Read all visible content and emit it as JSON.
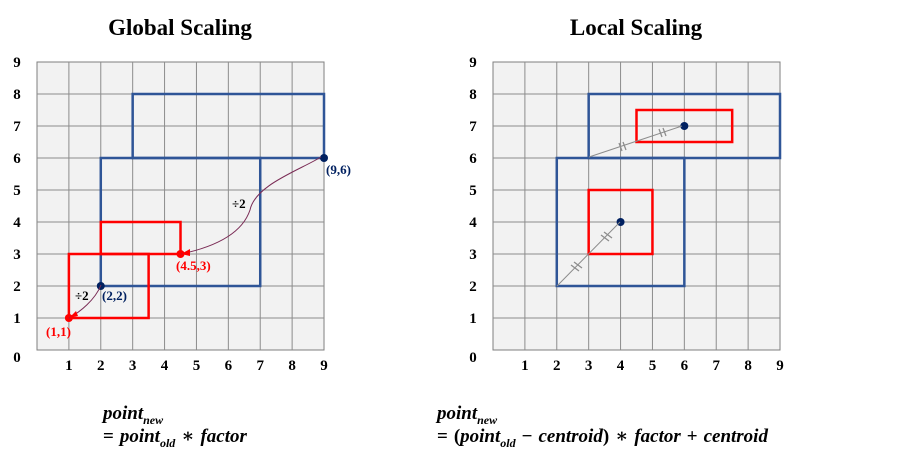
{
  "panels": [
    {
      "title": "Global Scaling",
      "x_ticks": [
        "1",
        "2",
        "3",
        "4",
        "5",
        "6",
        "7",
        "8",
        "9"
      ],
      "y_ticks": [
        "1",
        "2",
        "3",
        "4",
        "5",
        "6",
        "7",
        "8",
        "9"
      ],
      "origin_label": "0",
      "blue_rects": [
        {
          "x1": 3,
          "y1": 6,
          "x2": 9,
          "y2": 8
        },
        {
          "x1": 2,
          "y1": 2,
          "x2": 7,
          "y2": 6
        }
      ],
      "red_rects": [
        {
          "x1": 2,
          "y1": 3,
          "x2": 4.5,
          "y2": 4
        },
        {
          "x1": 1,
          "y1": 1,
          "x2": 3.5,
          "y2": 3
        }
      ],
      "points": [
        {
          "x": 9,
          "y": 6,
          "color": "#002060",
          "label": "(9,6)"
        },
        {
          "x": 2,
          "y": 2,
          "color": "#002060",
          "label": "(2,2)"
        },
        {
          "x": 4.5,
          "y": 3,
          "color": "#ff0000",
          "label": "(4.5,3)"
        },
        {
          "x": 1,
          "y": 1,
          "color": "#ff0000",
          "label": "(1,1)"
        }
      ],
      "annotations": [
        "÷2",
        "÷2"
      ],
      "formula": {
        "line1_main": "point",
        "line1_sub": "new",
        "line2_eq": "=",
        "line2_main": "point",
        "line2_sub": "old",
        "line2_op": "∗",
        "line2_factor": "factor"
      }
    },
    {
      "title": "Local Scaling",
      "x_ticks": [
        "1",
        "2",
        "3",
        "4",
        "5",
        "6",
        "7",
        "8",
        "9"
      ],
      "y_ticks": [
        "1",
        "2",
        "3",
        "4",
        "5",
        "6",
        "7",
        "8",
        "9"
      ],
      "origin_label": "0",
      "blue_rects": [
        {
          "x1": 3,
          "y1": 6,
          "x2": 9,
          "y2": 8
        },
        {
          "x1": 2,
          "y1": 2,
          "x2": 6,
          "y2": 6
        }
      ],
      "red_rects": [
        {
          "x1": 4.5,
          "y1": 6.5,
          "x2": 7.5,
          "y2": 7.5
        },
        {
          "x1": 3,
          "y1": 3,
          "x2": 5,
          "y2": 5
        }
      ],
      "points": [
        {
          "x": 6,
          "y": 7,
          "color": "#002060"
        },
        {
          "x": 4,
          "y": 4,
          "color": "#002060"
        }
      ],
      "formula": {
        "line1_main": "point",
        "line1_sub": "new",
        "line2_eq": "=",
        "line2_open": "(",
        "line2_main": "point",
        "line2_sub": "old",
        "line2_minus": "−",
        "line2_centroid": "centroid",
        "line2_close": ")",
        "line2_op": "∗",
        "line2_factor": "factor",
        "line2_plus": "+",
        "line2_centroid2": "centroid"
      }
    }
  ]
}
